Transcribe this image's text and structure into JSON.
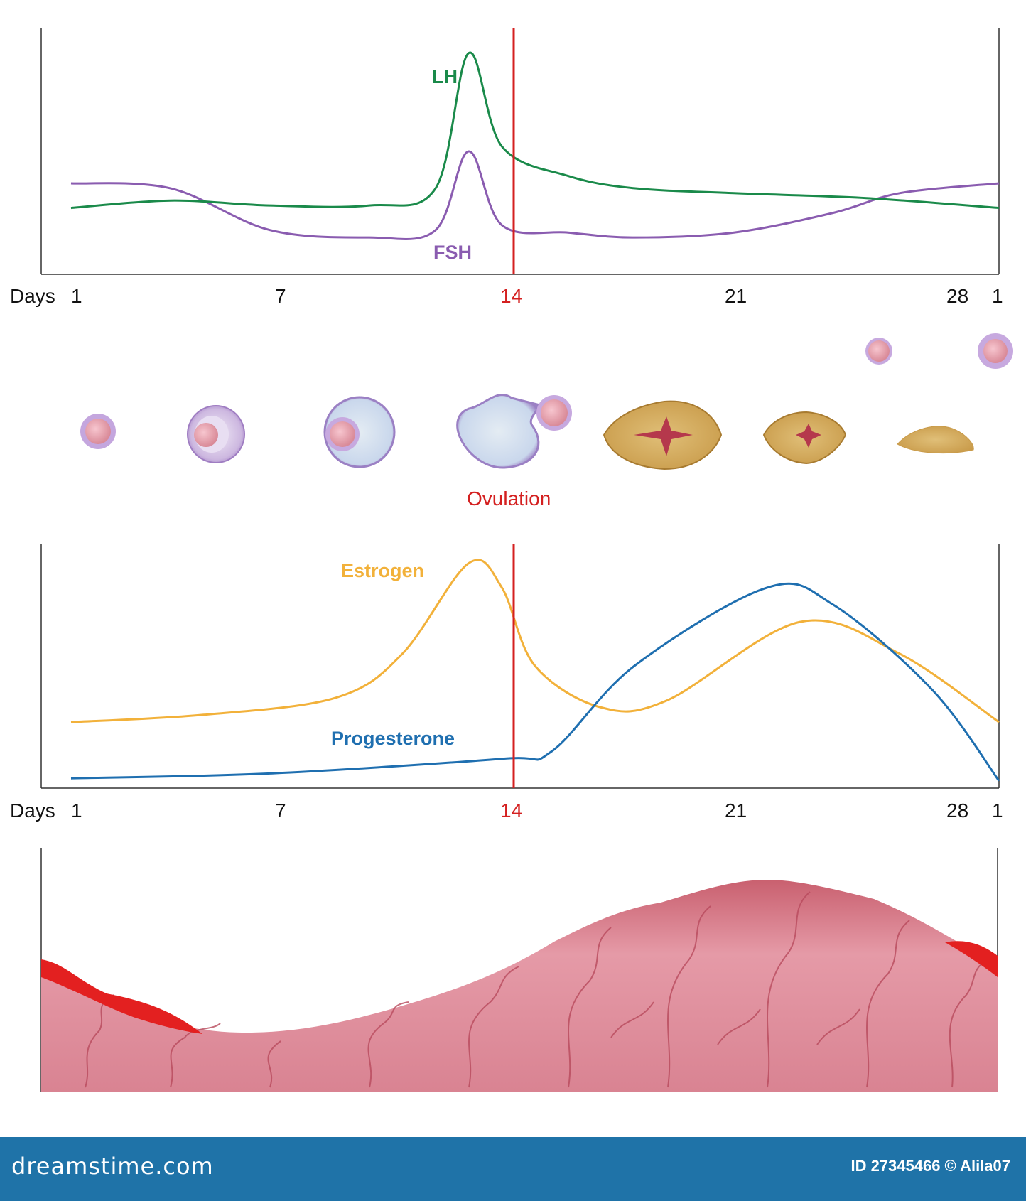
{
  "colors": {
    "lh": "#1a8a4a",
    "fsh": "#8a5cb0",
    "estrogen": "#f2b13a",
    "progesterone": "#1f6fb0",
    "ovulation": "#d42020",
    "axis": "#333333",
    "endometrium": "#e89aa6",
    "menstruation": "#e32020",
    "footer": "#1f73a8"
  },
  "axis_labels": {
    "days_label": "Days",
    "ticks": [
      "1",
      "7",
      "14",
      "21",
      "28",
      "1"
    ]
  },
  "ovulation_label": "Ovulation",
  "chart_data": [
    {
      "type": "line",
      "xlabel": "Days",
      "x_ticks": [
        "1",
        "7",
        "14",
        "21",
        "28",
        "1"
      ],
      "series": [
        {
          "name": "LH",
          "x": [
            1,
            4,
            7,
            10,
            12,
            13,
            14,
            16,
            18,
            21,
            25,
            29
          ],
          "y": [
            0.27,
            0.3,
            0.28,
            0.28,
            0.35,
            0.9,
            0.52,
            0.4,
            0.35,
            0.33,
            0.31,
            0.27
          ]
        },
        {
          "name": "FSH",
          "x": [
            1,
            4,
            7,
            10,
            12,
            13,
            14,
            16,
            18,
            21,
            24,
            26,
            29
          ],
          "y": [
            0.37,
            0.35,
            0.18,
            0.15,
            0.18,
            0.5,
            0.2,
            0.17,
            0.15,
            0.17,
            0.25,
            0.33,
            0.37
          ]
        }
      ],
      "annotation": {
        "x": 14,
        "label": "14"
      }
    },
    {
      "type": "line",
      "xlabel": "Days",
      "x_ticks": [
        "1",
        "7",
        "14",
        "21",
        "28",
        "1"
      ],
      "series": [
        {
          "name": "Estrogen",
          "x": [
            1,
            5,
            9,
            11,
            13,
            14,
            15,
            17,
            19,
            23,
            26,
            29
          ],
          "y": [
            0.27,
            0.3,
            0.37,
            0.55,
            0.92,
            0.82,
            0.5,
            0.33,
            0.36,
            0.68,
            0.55,
            0.27
          ]
        },
        {
          "name": "Progesterone",
          "x": [
            1,
            7,
            14,
            15.5,
            18,
            22,
            24,
            27,
            29
          ],
          "y": [
            0.04,
            0.06,
            0.12,
            0.15,
            0.5,
            0.82,
            0.75,
            0.4,
            0.03
          ]
        }
      ],
      "annotation": {
        "x": 14,
        "label": "14"
      }
    }
  ],
  "footer": {
    "logo": "dreamstime.com",
    "credit": "ID 27345466 © Alila07"
  }
}
